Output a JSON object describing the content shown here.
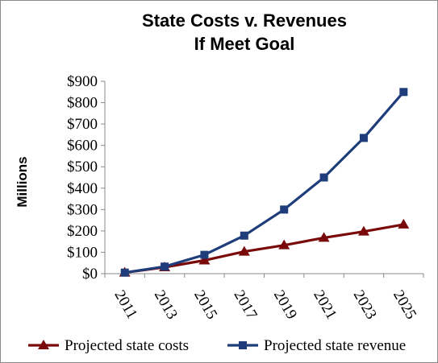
{
  "chart_data": {
    "type": "line",
    "title_lines": [
      "State Costs v. Revenues",
      "If Meet Goal"
    ],
    "ylabel": "Millions",
    "xlabel": "",
    "x": [
      "2011",
      "2013",
      "2015",
      "2017",
      "2019",
      "2021",
      "2023",
      "2025"
    ],
    "ylim": [
      0,
      900
    ],
    "yticks": [
      0,
      100,
      200,
      300,
      400,
      500,
      600,
      700,
      800,
      900
    ],
    "ytick_labels": [
      "$0",
      "$100",
      "$200",
      "$300",
      "$400",
      "$500",
      "$600",
      "$700",
      "$800",
      "$900"
    ],
    "grid": false,
    "legend_position": "bottom",
    "series": [
      {
        "name": "Projected state costs",
        "values": [
          5,
          30,
          62,
          103,
          133,
          168,
          197,
          230
        ],
        "color": "#7a0a0a",
        "marker": "triangle"
      },
      {
        "name": "Projected state revenue",
        "values": [
          5,
          33,
          88,
          178,
          300,
          450,
          635,
          850
        ],
        "color": "#1f3d7a",
        "marker": "square"
      }
    ]
  }
}
